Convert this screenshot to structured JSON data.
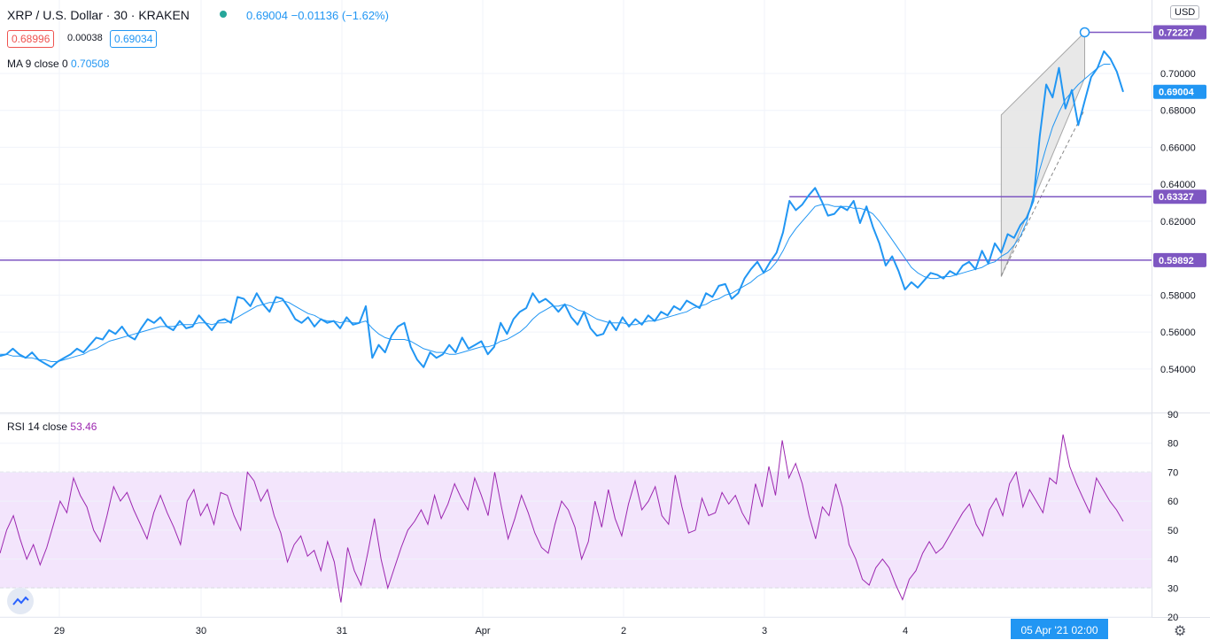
{
  "header": {
    "symbol": "XRP / U.S. Dollar · 30 · KRAKEN",
    "quote": "0.69004  −0.01136 (−1.62%)",
    "bid": "0.68996",
    "spread": "0.00038",
    "ask": "0.69034",
    "ma_label": "MA 9 close 0",
    "ma_value": "0.70508",
    "rsi_label": "RSI 14 close",
    "rsi_value": "53.46",
    "currency": "USD"
  },
  "colors": {
    "price": "#2196f3",
    "ma": "#2196f3",
    "rsi": "#9c27b0",
    "hline": "#7e57c2",
    "band": "#f3e5fc"
  },
  "chart_data": [
    {
      "type": "line",
      "name": "price-pane",
      "y_ticks": [
        "0.54000",
        "0.56000",
        "0.58000",
        "0.60000",
        "0.62000",
        "0.64000",
        "0.66000",
        "0.68000",
        "0.70000"
      ],
      "ylim": [
        0.5337,
        0.7225
      ],
      "x_labels": [
        "29",
        "30",
        "31",
        "Apr",
        "2",
        "3",
        "4",
        "05 Apr '21  02:00"
      ],
      "series": [
        {
          "name": "XRP / U.S. Dollar",
          "values": [
            0.547,
            0.548,
            0.551,
            0.548,
            0.546,
            0.549,
            0.545,
            0.543,
            0.541,
            0.544,
            0.546,
            0.548,
            0.551,
            0.549,
            0.553,
            0.557,
            0.556,
            0.561,
            0.559,
            0.563,
            0.558,
            0.556,
            0.562,
            0.567,
            0.565,
            0.568,
            0.563,
            0.561,
            0.566,
            0.562,
            0.563,
            0.569,
            0.565,
            0.561,
            0.566,
            0.567,
            0.565,
            0.579,
            0.578,
            0.574,
            0.581,
            0.575,
            0.571,
            0.579,
            0.578,
            0.573,
            0.567,
            0.565,
            0.568,
            0.563,
            0.567,
            0.565,
            0.566,
            0.562,
            0.568,
            0.564,
            0.565,
            0.574,
            0.546,
            0.553,
            0.549,
            0.558,
            0.563,
            0.565,
            0.552,
            0.545,
            0.541,
            0.549,
            0.546,
            0.548,
            0.553,
            0.549,
            0.557,
            0.551,
            0.553,
            0.555,
            0.548,
            0.552,
            0.565,
            0.559,
            0.567,
            0.571,
            0.573,
            0.581,
            0.576,
            0.578,
            0.575,
            0.571,
            0.575,
            0.568,
            0.564,
            0.571,
            0.562,
            0.558,
            0.559,
            0.566,
            0.561,
            0.568,
            0.563,
            0.567,
            0.564,
            0.569,
            0.566,
            0.571,
            0.569,
            0.574,
            0.572,
            0.577,
            0.575,
            0.573,
            0.581,
            0.579,
            0.585,
            0.586,
            0.578,
            0.581,
            0.589,
            0.594,
            0.598,
            0.592,
            0.598,
            0.603,
            0.614,
            0.631,
            0.626,
            0.629,
            0.634,
            0.638,
            0.631,
            0.623,
            0.624,
            0.628,
            0.626,
            0.631,
            0.619,
            0.628,
            0.617,
            0.608,
            0.596,
            0.601,
            0.593,
            0.583,
            0.587,
            0.584,
            0.588,
            0.592,
            0.591,
            0.589,
            0.593,
            0.591,
            0.596,
            0.598,
            0.594,
            0.604,
            0.597,
            0.608,
            0.603,
            0.613,
            0.611,
            0.618,
            0.622,
            0.631,
            0.666,
            0.694,
            0.687,
            0.703,
            0.681,
            0.691,
            0.672,
            0.685,
            0.698,
            0.703,
            0.712,
            0.708,
            0.701,
            0.69
          ]
        },
        {
          "name": "MA 9 close 0",
          "values": [
            0.548,
            0.548,
            0.547,
            0.547,
            0.546,
            0.546,
            0.545,
            0.545,
            0.544,
            0.544,
            0.545,
            0.546,
            0.547,
            0.548,
            0.55,
            0.551,
            0.553,
            0.555,
            0.556,
            0.557,
            0.558,
            0.559,
            0.56,
            0.561,
            0.562,
            0.563,
            0.563,
            0.563,
            0.564,
            0.564,
            0.564,
            0.565,
            0.565,
            0.564,
            0.565,
            0.565,
            0.566,
            0.568,
            0.57,
            0.572,
            0.574,
            0.575,
            0.576,
            0.576,
            0.577,
            0.576,
            0.574,
            0.572,
            0.57,
            0.569,
            0.567,
            0.566,
            0.566,
            0.565,
            0.566,
            0.565,
            0.565,
            0.566,
            0.562,
            0.559,
            0.557,
            0.556,
            0.556,
            0.556,
            0.555,
            0.553,
            0.551,
            0.55,
            0.549,
            0.549,
            0.548,
            0.548,
            0.549,
            0.55,
            0.551,
            0.552,
            0.552,
            0.553,
            0.555,
            0.556,
            0.558,
            0.56,
            0.563,
            0.567,
            0.57,
            0.572,
            0.574,
            0.574,
            0.575,
            0.574,
            0.572,
            0.571,
            0.569,
            0.567,
            0.566,
            0.565,
            0.565,
            0.565,
            0.564,
            0.564,
            0.565,
            0.566,
            0.566,
            0.567,
            0.568,
            0.569,
            0.57,
            0.571,
            0.573,
            0.574,
            0.575,
            0.577,
            0.578,
            0.58,
            0.581,
            0.583,
            0.585,
            0.587,
            0.59,
            0.592,
            0.594,
            0.598,
            0.604,
            0.611,
            0.616,
            0.62,
            0.624,
            0.628,
            0.629,
            0.629,
            0.628,
            0.628,
            0.628,
            0.627,
            0.627,
            0.626,
            0.624,
            0.62,
            0.615,
            0.61,
            0.605,
            0.6,
            0.595,
            0.592,
            0.59,
            0.589,
            0.589,
            0.59,
            0.59,
            0.591,
            0.592,
            0.593,
            0.594,
            0.595,
            0.597,
            0.598,
            0.601,
            0.603,
            0.607,
            0.612,
            0.62,
            0.634,
            0.648,
            0.66,
            0.671,
            0.679,
            0.686,
            0.69,
            0.694,
            0.697,
            0.7,
            0.703,
            0.705,
            0.705
          ]
        }
      ],
      "horizontal_lines": [
        {
          "label": "0.72227",
          "value": 0.72227
        },
        {
          "label": "0.63327",
          "value": 0.63327
        },
        {
          "label": "0.59892",
          "value": 0.59892
        }
      ],
      "last_price_label": "0.69004"
    },
    {
      "type": "line",
      "name": "rsi-pane",
      "y_ticks": [
        "20",
        "30",
        "40",
        "50",
        "60",
        "70",
        "80",
        "90"
      ],
      "ylim": [
        20,
        90
      ],
      "band": [
        30,
        70
      ],
      "series": [
        {
          "name": "RSI 14 close",
          "values": [
            42,
            50,
            55,
            47,
            40,
            45,
            38,
            44,
            52,
            60,
            56,
            68,
            62,
            58,
            50,
            46,
            55,
            65,
            60,
            63,
            57,
            52,
            47,
            56,
            62,
            56,
            51,
            45,
            60,
            64,
            55,
            59,
            52,
            63,
            62,
            55,
            50,
            70,
            67,
            60,
            64,
            55,
            49,
            39,
            45,
            48,
            41,
            43,
            36,
            46,
            39,
            25,
            44,
            36,
            31,
            42,
            54,
            40,
            30,
            37,
            44,
            50,
            53,
            57,
            52,
            62,
            54,
            59,
            66,
            61,
            57,
            68,
            62,
            55,
            70,
            58,
            47,
            54,
            62,
            56,
            49,
            44,
            42,
            52,
            60,
            57,
            51,
            40,
            46,
            60,
            51,
            64,
            54,
            48,
            59,
            67,
            57,
            60,
            65,
            55,
            52,
            69,
            58,
            49,
            50,
            61,
            55,
            56,
            63,
            59,
            62,
            56,
            52,
            66,
            58,
            72,
            62,
            81,
            68,
            73,
            66,
            55,
            47,
            58,
            55,
            66,
            58,
            45,
            40,
            33,
            31,
            37,
            40,
            37,
            31,
            26,
            33,
            36,
            42,
            46,
            42,
            44,
            48,
            52,
            56,
            59,
            52,
            48,
            57,
            61,
            55,
            66,
            70,
            58,
            64,
            60,
            56,
            68,
            66,
            83,
            72,
            66,
            61,
            56,
            68,
            64,
            60,
            57,
            53
          ]
        }
      ]
    }
  ]
}
